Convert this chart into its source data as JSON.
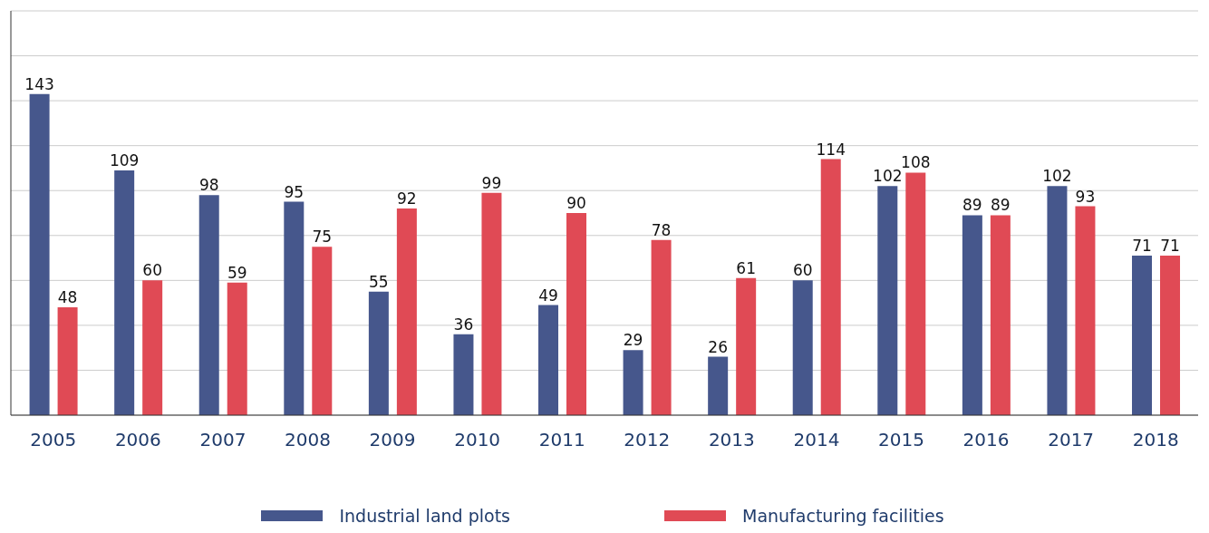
{
  "chart_data": {
    "type": "bar",
    "categories": [
      "2005",
      "2006",
      "2007",
      "2008",
      "2009",
      "2010",
      "2011",
      "2012",
      "2013",
      "2014",
      "2015",
      "2016",
      "2017",
      "2018"
    ],
    "series": [
      {
        "name": "Industrial land plots",
        "color": "#46578c",
        "values": [
          143,
          109,
          98,
          95,
          55,
          36,
          49,
          29,
          26,
          60,
          102,
          89,
          102,
          71
        ]
      },
      {
        "name": "Manufacturing facilities",
        "color": "#e04a55",
        "values": [
          48,
          60,
          59,
          75,
          92,
          99,
          90,
          78,
          61,
          114,
          108,
          89,
          93,
          71
        ]
      }
    ],
    "ylim": [
      0,
      180
    ],
    "yticks": [
      0,
      {
        "value": 20,
        "label": null
      },
      {
        "value": 40,
        "label": null
      },
      {
        "value": 60,
        "label": null
      },
      {
        "value": 80,
        "label": null
      },
      {
        "value": 100,
        "label": null
      },
      {
        "value": 120,
        "label": null
      },
      {
        "value": 140,
        "label": null
      },
      {
        "value": 160,
        "label": null
      },
      {
        "value": 180,
        "label": null
      }
    ],
    "tick_labels": "x",
    "grid": "y",
    "data_labels": true,
    "legend": "bottom"
  }
}
